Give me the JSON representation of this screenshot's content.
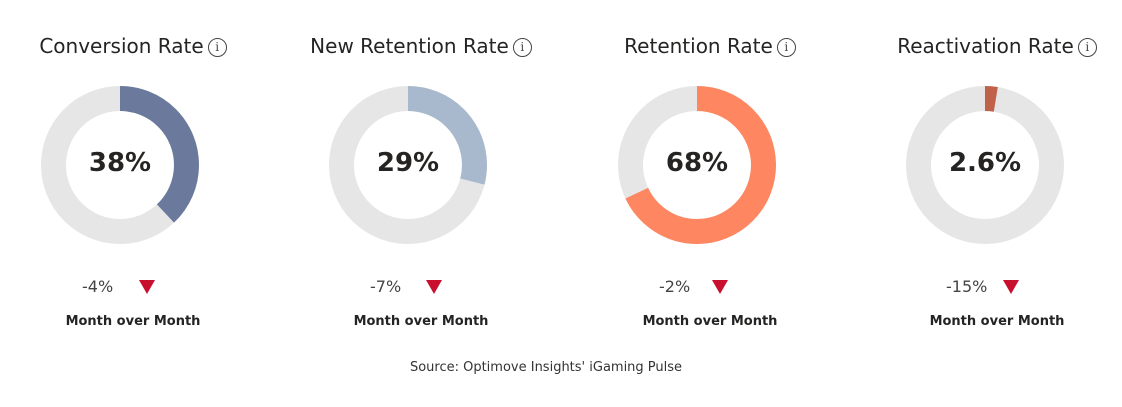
{
  "chart_data": [
    {
      "type": "donut",
      "title": "Conversion Rate",
      "value": 38,
      "value_label": "38%",
      "color": "#6b7a9c",
      "track_color": "#e6e6e6",
      "delta_label": "-4%",
      "delta_direction": "down",
      "comparison_label": "Month over Month"
    },
    {
      "type": "donut",
      "title": "New Retention Rate",
      "value": 29,
      "value_label": "29%",
      "color": "#a8b8cd",
      "track_color": "#e6e6e6",
      "delta_label": "-7%",
      "delta_direction": "down",
      "comparison_label": "Month over Month"
    },
    {
      "type": "donut",
      "title": "Retention Rate",
      "value": 68,
      "value_label": "68%",
      "color": "#fe8660",
      "track_color": "#e6e6e6",
      "delta_label": "-2%",
      "delta_direction": "down",
      "comparison_label": "Month over Month"
    },
    {
      "type": "donut",
      "title": "Reactivation Rate",
      "value": 2.6,
      "value_label": "2.6%",
      "color": "#c0614a",
      "track_color": "#e6e6e6",
      "delta_label": "-15%",
      "delta_direction": "down",
      "comparison_label": "Month over Month"
    }
  ],
  "info_glyph": "i",
  "arrow_color": "#c8102e",
  "source": "Source: Optimove Insights' iGaming Pulse"
}
